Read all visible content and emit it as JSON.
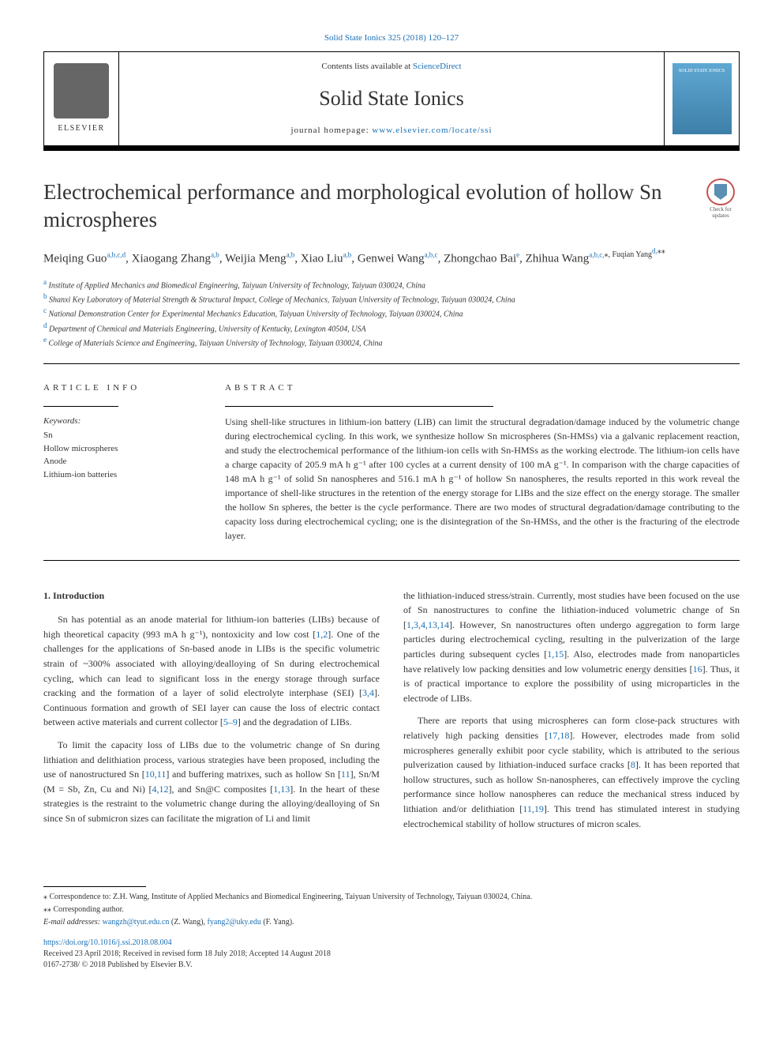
{
  "top_link": "Solid State Ionics 325 (2018) 120–127",
  "header": {
    "contents_prefix": "Contents lists available at ",
    "contents_link": "ScienceDirect",
    "journal": "Solid State Ionics",
    "homepage_prefix": "journal homepage: ",
    "homepage_url": "www.elsevier.com/locate/ssi",
    "publisher_name": "ELSEVIER",
    "cover_label": "SOLID STATE IONICS"
  },
  "check_updates": "Check for updates",
  "title": "Electrochemical performance and morphological evolution of hollow Sn microspheres",
  "authors_html": "Meiqing Guo<sup>a,b,c,d</sup>, Xiaogang Zhang<sup>a,b</sup>, Weijia Meng<sup>a,b</sup>, Xiao Liu<sup>a,b</sup>, Genwei Wang<sup>a,b,c</sup>, Zhongchao Bai<sup>e</sup>, Zhihua Wang<sup>a,b,c,</sup><sup class='sup-star'>⁎</sup>, Fuqian Yang<sup>d,</sup><sup class='sup-star'>⁎⁎</sup>",
  "affiliations": [
    {
      "tag": "a",
      "text": "Institute of Applied Mechanics and Biomedical Engineering, Taiyuan University of Technology, Taiyuan 030024, China"
    },
    {
      "tag": "b",
      "text": "Shanxi Key Laboratory of Material Strength & Structural Impact, College of Mechanics, Taiyuan University of Technology, Taiyuan 030024, China"
    },
    {
      "tag": "c",
      "text": "National Demonstration Center for Experimental Mechanics Education, Taiyuan University of Technology, Taiyuan 030024, China"
    },
    {
      "tag": "d",
      "text": "Department of Chemical and Materials Engineering, University of Kentucky, Lexington 40504, USA"
    },
    {
      "tag": "e",
      "text": "College of Materials Science and Engineering, Taiyuan University of Technology, Taiyuan 030024, China"
    }
  ],
  "info_heading": "ARTICLE INFO",
  "abstract_heading": "ABSTRACT",
  "keywords_label": "Keywords:",
  "keywords": [
    "Sn",
    "Hollow microspheres",
    "Anode",
    "Lithium-ion batteries"
  ],
  "abstract": "Using shell-like structures in lithium-ion battery (LIB) can limit the structural degradation/damage induced by the volumetric change during electrochemical cycling. In this work, we synthesize hollow Sn microspheres (Sn-HMSs) via a galvanic replacement reaction, and study the electrochemical performance of the lithium-ion cells with Sn-HMSs as the working electrode. The lithium-ion cells have a charge capacity of 205.9 mA h g⁻¹ after 100 cycles at a current density of 100 mA g⁻¹. In comparison with the charge capacities of 148 mA h g⁻¹ of solid Sn nanospheres and 516.1 mA h g⁻¹ of hollow Sn nanospheres, the results reported in this work reveal the importance of shell-like structures in the retention of the energy storage for LIBs and the size effect on the energy storage. The smaller the hollow Sn spheres, the better is the cycle performance. There are two modes of structural degradation/damage contributing to the capacity loss during electrochemical cycling; one is the disintegration of the Sn-HMSs, and the other is the fracturing of the electrode layer.",
  "section1_heading": "1. Introduction",
  "col1_p1": "Sn has potential as an anode material for lithium-ion batteries (LIBs) because of high theoretical capacity (993 mA h g⁻¹), nontoxicity and low cost [1,2]. One of the challenges for the applications of Sn-based anode in LIBs is the specific volumetric strain of ~300% associated with alloying/dealloying of Sn during electrochemical cycling, which can lead to significant loss in the energy storage through surface cracking and the formation of a layer of solid electrolyte interphase (SEI) [3,4]. Continuous formation and growth of SEI layer can cause the loss of electric contact between active materials and current collector [5–9] and the degradation of LIBs.",
  "col1_p2": "To limit the capacity loss of LIBs due to the volumetric change of Sn during lithiation and delithiation process, various strategies have been proposed, including the use of nanostructured Sn [10,11] and buffering matrixes, such as hollow Sn [11], Sn/M (M = Sb, Zn, Cu and Ni) [4,12], and Sn@C composites [1,13]. In the heart of these strategies is the restraint to the volumetric change during the alloying/dealloying of Sn since Sn of submicron sizes can facilitate the migration of Li and limit",
  "col2_p1": "the lithiation-induced stress/strain. Currently, most studies have been focused on the use of Sn nanostructures to confine the lithiation-induced volumetric change of Sn [1,3,4,13,14]. However, Sn nanostructures often undergo aggregation to form large particles during electrochemical cycling, resulting in the pulverization of the large particles during subsequent cycles [1,15]. Also, electrodes made from nanoparticles have relatively low packing densities and low volumetric energy densities [16]. Thus, it is of practical importance to explore the possibility of using microparticles in the electrode of LIBs.",
  "col2_p2": "There are reports that using microspheres can form close-pack structures with relatively high packing densities [17,18]. However, electrodes made from solid microspheres generally exhibit poor cycle stability, which is attributed to the serious pulverization caused by lithiation-induced surface cracks [8]. It has been reported that hollow structures, such as hollow Sn-nanospheres, can effectively improve the cycling performance since hollow nanospheres can reduce the mechanical stress induced by lithiation and/or delithiation [11,19]. This trend has stimulated interest in studying electrochemical stability of hollow structures of micron scales.",
  "footer": {
    "corr1": "⁎ Correspondence to: Z.H. Wang, Institute of Applied Mechanics and Biomedical Engineering, Taiyuan University of Technology, Taiyuan 030024, China.",
    "corr2": "⁎⁎ Corresponding author.",
    "email_label": "E-mail addresses: ",
    "email1": "wangzh@tyut.edu.cn",
    "email1_name": " (Z. Wang), ",
    "email2": "fyang2@uky.edu",
    "email2_name": " (F. Yang).",
    "doi": "https://doi.org/10.1016/j.ssi.2018.08.004",
    "received": "Received 23 April 2018; Received in revised form 18 July 2018; Accepted 14 August 2018",
    "copyright": "0167-2738/ © 2018 Published by Elsevier B.V."
  },
  "colors": {
    "link": "#1a6fb4",
    "text": "#333333",
    "cover_bg_top": "#5fa8d3",
    "cover_bg_bottom": "#3d7fa8",
    "check_ring": "#c85050",
    "check_mark": "#5b8fb3"
  }
}
